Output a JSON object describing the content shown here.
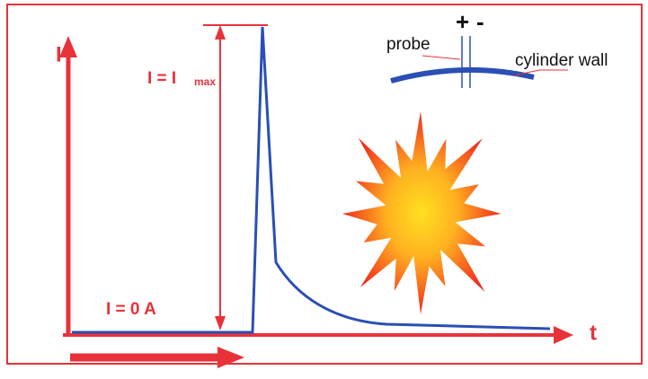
{
  "axes": {
    "y_label": "I",
    "x_label": "t"
  },
  "labels": {
    "i_max": {
      "main": "I = I",
      "subscript": "max"
    },
    "i_zero": "I = 0 A",
    "probe": "probe",
    "cylinder_wall": "cylinder wall",
    "plus": "+",
    "minus": "-"
  }
}
